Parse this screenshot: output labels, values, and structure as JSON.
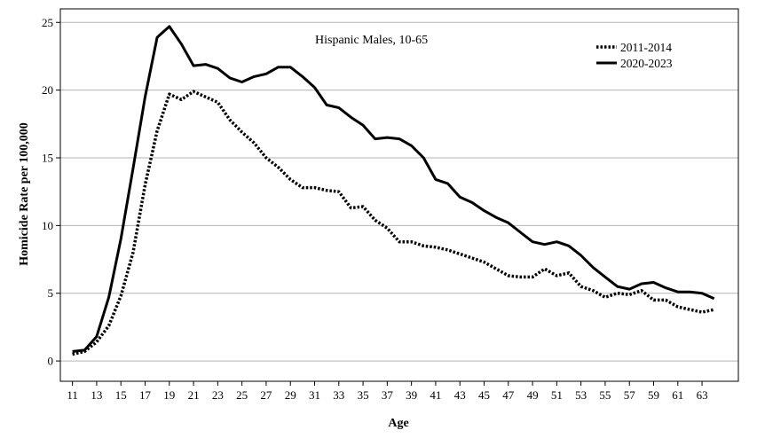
{
  "chart_data": {
    "type": "line",
    "title": "",
    "annotation": "Hispanic Males, 10-65",
    "xlabel": "Age",
    "ylabel": "Homicide Rate per 100,000",
    "xlim": [
      10,
      66
    ],
    "ylim": [
      -1.5,
      26
    ],
    "yticks": [
      0,
      5,
      10,
      15,
      20,
      25
    ],
    "xticks": [
      11,
      13,
      15,
      17,
      19,
      21,
      23,
      25,
      27,
      29,
      31,
      33,
      35,
      37,
      39,
      41,
      43,
      45,
      47,
      49,
      51,
      53,
      55,
      57,
      59,
      61,
      63
    ],
    "grid": "horizontal",
    "legend_position": "top-right",
    "series": [
      {
        "name": "2011-2014",
        "style": "dotted",
        "color": "#000000",
        "x": [
          11,
          12,
          13,
          14,
          15,
          16,
          17,
          18,
          19,
          20,
          21,
          22,
          23,
          24,
          25,
          26,
          27,
          28,
          29,
          30,
          31,
          32,
          33,
          34,
          35,
          36,
          37,
          38,
          39,
          40,
          41,
          42,
          43,
          44,
          45,
          46,
          47,
          48,
          49,
          50,
          51,
          52,
          53,
          54,
          55,
          56,
          57,
          58,
          59,
          60,
          61,
          62,
          63,
          64
        ],
        "y": [
          0.5,
          0.7,
          1.4,
          2.6,
          4.8,
          8.0,
          13.0,
          17.0,
          19.7,
          19.3,
          19.9,
          19.5,
          19.1,
          17.8,
          16.9,
          16.1,
          15.0,
          14.3,
          13.4,
          12.8,
          12.8,
          12.6,
          12.5,
          11.3,
          11.4,
          10.4,
          9.8,
          8.8,
          8.8,
          8.5,
          8.4,
          8.2,
          7.9,
          7.6,
          7.3,
          6.8,
          6.3,
          6.2,
          6.2,
          6.8,
          6.3,
          6.5,
          5.5,
          5.2,
          4.7,
          5.0,
          4.9,
          5.2,
          4.5,
          4.5,
          4.0,
          3.8,
          3.6,
          3.8
        ]
      },
      {
        "name": "2020-2023",
        "style": "solid",
        "color": "#000000",
        "x": [
          11,
          12,
          13,
          14,
          15,
          16,
          17,
          18,
          19,
          20,
          21,
          22,
          23,
          24,
          25,
          26,
          27,
          28,
          29,
          30,
          31,
          32,
          33,
          34,
          35,
          36,
          37,
          38,
          39,
          40,
          41,
          42,
          43,
          44,
          45,
          46,
          47,
          48,
          49,
          50,
          51,
          52,
          53,
          54,
          55,
          56,
          57,
          58,
          59,
          60,
          61,
          62,
          63,
          64
        ],
        "y": [
          0.7,
          0.8,
          1.8,
          4.7,
          9.0,
          14.2,
          19.5,
          23.9,
          24.7,
          23.4,
          21.8,
          21.9,
          21.6,
          20.9,
          20.6,
          21.0,
          21.2,
          21.7,
          21.7,
          21.0,
          20.2,
          18.9,
          18.7,
          18.0,
          17.4,
          16.4,
          16.5,
          16.4,
          15.9,
          15.0,
          13.4,
          13.1,
          12.1,
          11.7,
          11.1,
          10.6,
          10.2,
          9.5,
          8.8,
          8.6,
          8.8,
          8.5,
          7.8,
          6.9,
          6.2,
          5.5,
          5.3,
          5.7,
          5.8,
          5.4,
          5.1,
          5.1,
          5.0,
          4.6
        ]
      }
    ]
  }
}
